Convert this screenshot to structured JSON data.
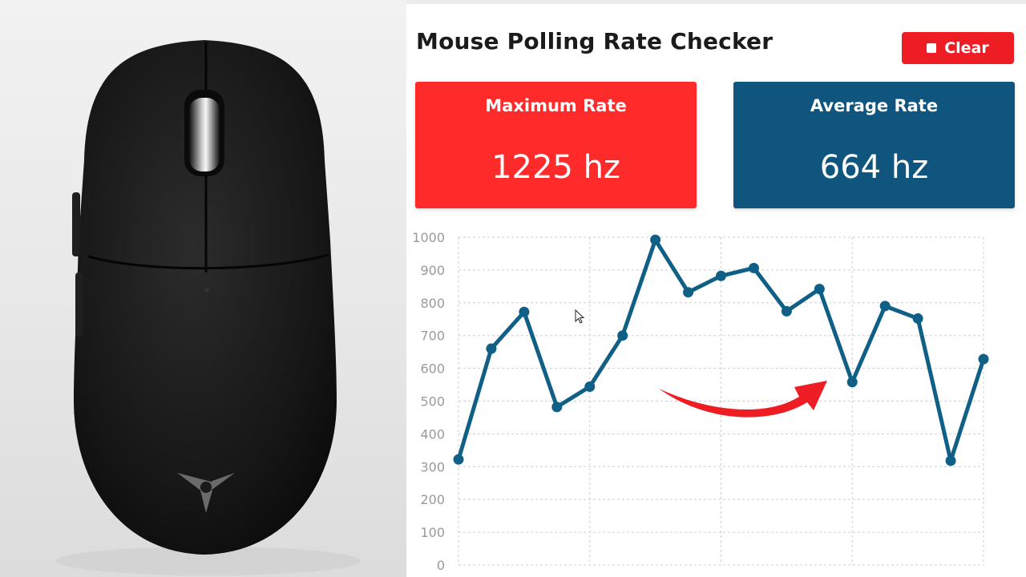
{
  "title": "Mouse Polling Rate Checker",
  "clear_button": {
    "label": "Clear",
    "icon": "stop-icon"
  },
  "cards": {
    "max": {
      "label": "Maximum Rate",
      "value": "1225 hz",
      "color": "#ff2a2a"
    },
    "avg": {
      "label": "Average Rate",
      "value": "664 hz",
      "color": "#0f557d"
    }
  },
  "chart_data": {
    "type": "line",
    "series": [
      {
        "x": [
          1,
          2,
          3,
          4,
          5,
          6,
          7,
          8,
          9,
          10,
          11,
          12,
          13,
          14,
          15,
          16,
          17
        ],
        "values": [
          322,
          660,
          772,
          482,
          544,
          700,
          992,
          832,
          882,
          906,
          774,
          842,
          558,
          790,
          752,
          318,
          628
        ]
      }
    ],
    "ylim": [
      0,
      1000
    ],
    "yticks": [
      "0",
      "100",
      "200",
      "300",
      "400",
      "500",
      "600",
      "700",
      "800",
      "900",
      "1000"
    ],
    "xlim": [
      1,
      17
    ],
    "xticks": [
      "1",
      "5",
      "9",
      "13",
      "17"
    ],
    "grid": true,
    "line_color": "#0f5f86",
    "annotation_color": "#ee1d23"
  }
}
